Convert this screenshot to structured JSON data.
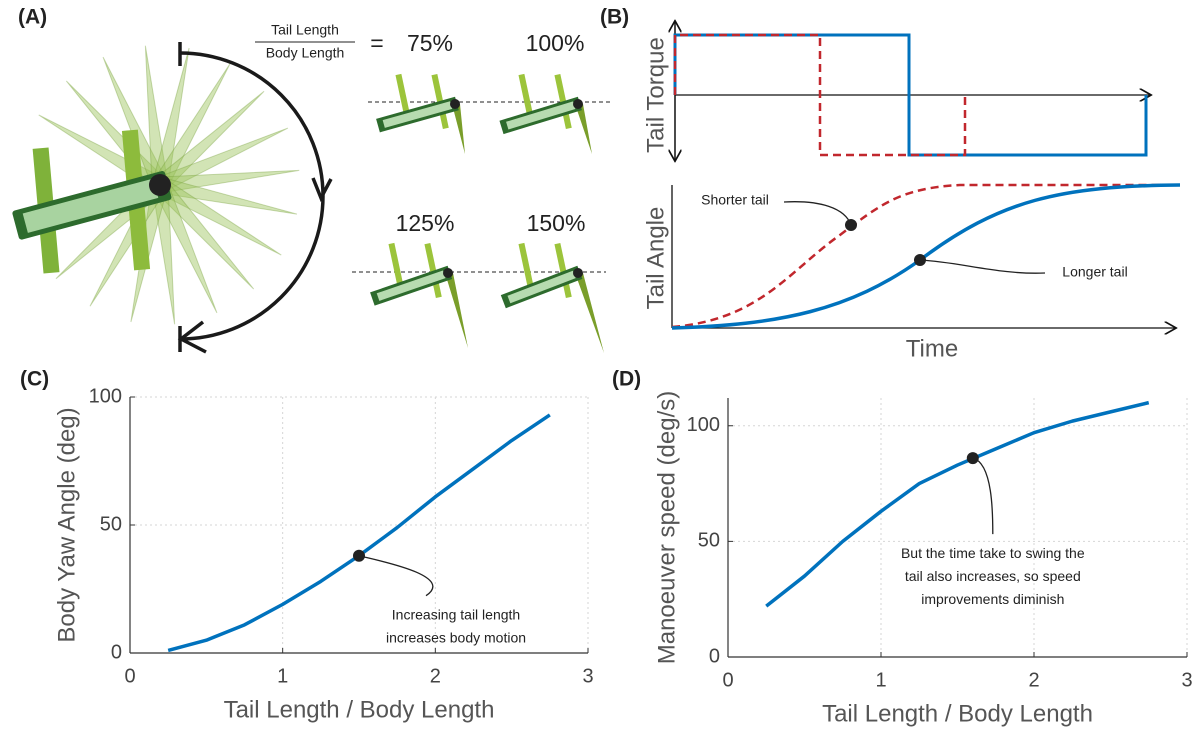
{
  "illustration": {
    "label": "(A)",
    "ratio_numerator": "Tail Length",
    "ratio_denominator": "Body Length",
    "equals": "=",
    "percentages": [
      "75%",
      "100%",
      "125%",
      "150%"
    ]
  },
  "schematic": {
    "label": "(B)",
    "top_ylabel": "Tail Torque",
    "bottom_ylabel": "Tail Angle",
    "xlabel": "Time",
    "short_note": "Shorter tail",
    "long_note": "Longer tail"
  },
  "chart_data": [
    {
      "type": "line",
      "label": "(C)",
      "xlabel": "Tail Length / Body Length",
      "ylabel": "Body Yaw Angle (deg)",
      "x": [
        0.25,
        0.5,
        0.75,
        1,
        1.25,
        1.5,
        1.75,
        2,
        2.25,
        2.5,
        2.75
      ],
      "series": [
        {
          "color": "#0072bd",
          "values": [
            1,
            5,
            11,
            19,
            28,
            38,
            49,
            61,
            72,
            83,
            93
          ]
        }
      ],
      "xlim": [
        0,
        3
      ],
      "ylim": [
        0,
        100
      ],
      "xticks": [
        0,
        1,
        2,
        3
      ],
      "yticks": [
        0,
        50,
        100
      ],
      "grid": true,
      "annotation": {
        "x": 1.5,
        "y": 38,
        "lines": [
          "Increasing tail length",
          "increases body motion"
        ]
      }
    },
    {
      "type": "line",
      "label": "(D)",
      "xlabel": "Tail Length / Body Length",
      "ylabel": "Manoeuver speed (deg/s)",
      "x": [
        0.25,
        0.5,
        0.75,
        1,
        1.25,
        1.5,
        1.75,
        2,
        2.25,
        2.5,
        2.75
      ],
      "series": [
        {
          "color": "#0072bd",
          "values": [
            22,
            35,
            50,
            63,
            75,
            83,
            90,
            97,
            102,
            106,
            110
          ]
        }
      ],
      "xlim": [
        0,
        3
      ],
      "ylim": [
        0,
        112
      ],
      "xticks": [
        0,
        1,
        2,
        3
      ],
      "yticks": [
        0,
        50,
        100
      ],
      "grid": true,
      "annotation": {
        "x": 1.6,
        "y": 86,
        "lines": [
          "But the time take to swing the",
          "tail also increases, so speed",
          "improvements diminish"
        ]
      }
    }
  ]
}
